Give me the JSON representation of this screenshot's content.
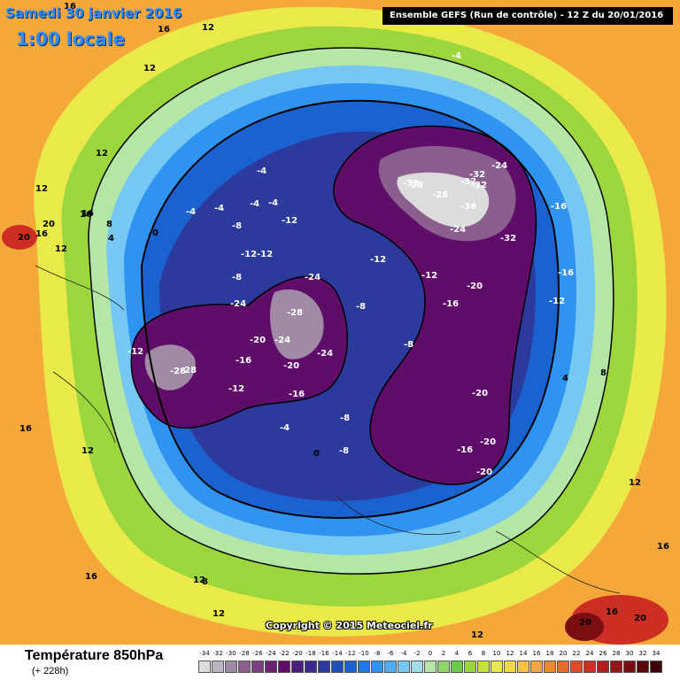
{
  "header": {
    "date": "Samedi 30 janvier 2016",
    "time": "1:00 locale",
    "run_info": "Ensemble GEFS  (Run de contrôle)  -  12 Z du 20/01/2016"
  },
  "footer": {
    "variable": "Température 850hPa",
    "step": "(+ 228h)",
    "copyright": "Copyright © 2015 Meteociel.fr"
  },
  "legend": {
    "ticks": [
      "-34",
      "-32",
      "-30",
      "-28",
      "-26",
      "-24",
      "-22",
      "-20",
      "-18",
      "-16",
      "-14",
      "-12",
      "-10",
      "-8",
      "-6",
      "-4",
      "-2",
      "0",
      "2",
      "4",
      "6",
      "8",
      "10",
      "12",
      "14",
      "16",
      "18",
      "20",
      "22",
      "24",
      "26",
      "28",
      "30",
      "32",
      "34"
    ],
    "colors": [
      "#dcdcdc",
      "#bdb3c2",
      "#a08aa5",
      "#8a5f8e",
      "#7c3f84",
      "#6e2076",
      "#600d6a",
      "#4a1e7e",
      "#3b2a8c",
      "#2c3a9e",
      "#1f4fb8",
      "#1b62d1",
      "#1f78e6",
      "#2f93f2",
      "#4daef5",
      "#76c8f2",
      "#9fdce8",
      "#b4e6a6",
      "#8cd66a",
      "#6bca4a",
      "#9ad63c",
      "#c8e03a",
      "#e9e94a",
      "#f5d74a",
      "#f5c040",
      "#f5a83a",
      "#f08a32",
      "#ea6a2c",
      "#e04a28",
      "#cc2e24",
      "#b41e20",
      "#961416",
      "#7a0e10",
      "#5c080a",
      "#400406"
    ]
  },
  "map_labels": [
    {
      "t": "16"
    },
    {
      "t": "12"
    },
    {
      "t": "12"
    },
    {
      "t": "12"
    },
    {
      "t": "16"
    },
    {
      "t": "12"
    },
    {
      "t": "-4"
    },
    {
      "t": "16"
    },
    {
      "t": "12"
    },
    {
      "t": "16"
    },
    {
      "t": "-4"
    },
    {
      "t": "-4"
    },
    {
      "t": "-4"
    },
    {
      "t": "-4"
    },
    {
      "t": "-8"
    },
    {
      "t": "-12"
    },
    {
      "t": "-12"
    },
    {
      "t": "-12"
    },
    {
      "t": "-8"
    },
    {
      "t": "0"
    },
    {
      "t": "4"
    },
    {
      "t": "8"
    },
    {
      "t": "16"
    },
    {
      "t": "20"
    },
    {
      "t": "16"
    },
    {
      "t": "20"
    },
    {
      "t": "12"
    },
    {
      "t": "-24"
    },
    {
      "t": "-28"
    },
    {
      "t": "-28"
    },
    {
      "t": "-20"
    },
    {
      "t": "-24"
    },
    {
      "t": "-24"
    },
    {
      "t": "-20"
    },
    {
      "t": "-16"
    },
    {
      "t": "-16"
    },
    {
      "t": "-12"
    },
    {
      "t": "-28"
    },
    {
      "t": "-24"
    },
    {
      "t": "-32"
    },
    {
      "t": "-28"
    },
    {
      "t": "-32"
    },
    {
      "t": "-32"
    },
    {
      "t": "-36"
    },
    {
      "t": "-24"
    },
    {
      "t": "-32"
    },
    {
      "t": "-32"
    },
    {
      "t": "-20"
    },
    {
      "t": "-16"
    },
    {
      "t": "-12"
    },
    {
      "t": "-12"
    },
    {
      "t": "-16"
    },
    {
      "t": "-16"
    },
    {
      "t": "-12"
    },
    {
      "t": "-8"
    },
    {
      "t": "-20"
    },
    {
      "t": "-20"
    },
    {
      "t": "-16"
    },
    {
      "t": "-20"
    },
    {
      "t": "-8"
    },
    {
      "t": "-8"
    },
    {
      "t": "-4"
    },
    {
      "t": "0"
    },
    {
      "t": "4"
    },
    {
      "t": "8"
    },
    {
      "t": "12"
    },
    {
      "t": "16"
    },
    {
      "t": "12"
    },
    {
      "t": "8"
    },
    {
      "t": "12"
    },
    {
      "t": "16"
    },
    {
      "t": "20"
    },
    {
      "t": "20"
    },
    {
      "t": "16"
    },
    {
      "t": "12"
    },
    {
      "t": "-4"
    },
    {
      "t": "-8"
    },
    {
      "t": "-12"
    },
    {
      "t": "-24"
    },
    {
      "t": "-28"
    }
  ]
}
